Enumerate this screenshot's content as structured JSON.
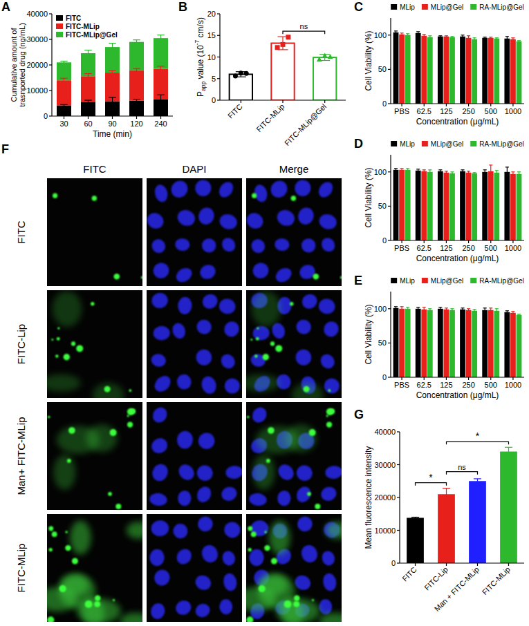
{
  "chart_data": [
    {
      "panel": "A",
      "type": "bar",
      "stacked": true,
      "grid": false,
      "legend": "top-left",
      "y_label": "Cumulative amount of trasnported drug (ng/mL)",
      "x_label": "Time (min)",
      "categories": [
        "30",
        "60",
        "90",
        "120",
        "240"
      ],
      "ylim": [
        0,
        40000
      ],
      "yticks": [
        0,
        10000,
        20000,
        30000,
        40000
      ],
      "series": [
        {
          "name": "FITC",
          "color": "#000000",
          "values": [
            4200,
            5400,
            5800,
            6000,
            6500
          ],
          "errors": [
            300,
            800,
            1500,
            600,
            1800
          ]
        },
        {
          "name": "FITC-MLip",
          "color": "#e8201c",
          "values": [
            9800,
            10200,
            11200,
            11800,
            12000
          ],
          "errors": [
            800,
            1000,
            700,
            800,
            1000
          ]
        },
        {
          "name": "FITC-MLip@Gel",
          "color": "#2eb82e",
          "values": [
            7000,
            9000,
            10000,
            11200,
            12000
          ],
          "errors": [
            500,
            1200,
            1500,
            800,
            1200
          ]
        }
      ]
    },
    {
      "panel": "B",
      "type": "bar",
      "grid": false,
      "y_label": [
        {
          "text": "P"
        },
        {
          "text": "app",
          "sub": true
        },
        {
          "text": " value (10"
        },
        {
          "text": "-7",
          "sup": true
        },
        {
          "text": " cm/s)"
        }
      ],
      "categories": [
        "FITC",
        "FITC-MLip",
        "FITC-MLip@Gel"
      ],
      "colors": [
        "#000000",
        "#e8201c",
        "#2eb82e"
      ],
      "values": [
        6.0,
        13.2,
        9.9
      ],
      "errors": [
        0.6,
        1.5,
        0.7
      ],
      "points": [
        {
          "marker": "circle",
          "values": [
            5.6,
            6.3,
            6.2
          ]
        },
        {
          "marker": "square",
          "values": [
            12.2,
            12.9,
            14.6
          ]
        },
        {
          "marker": "triangle",
          "values": [
            9.4,
            10.3,
            10.0
          ]
        }
      ],
      "ylim": [
        0,
        20
      ],
      "yticks": [
        0,
        5,
        10,
        15,
        20
      ],
      "annotations": [
        {
          "text": "ns",
          "between": [
            "FITC-MLip",
            "FITC-MLip@Gel"
          ]
        }
      ]
    },
    {
      "panel": "C",
      "type": "bar",
      "grid": false,
      "legend": "top",
      "y_label": "Cell Viability (%)",
      "x_label": "Concentration (μg/mL)",
      "categories": [
        "PBS",
        "62.5",
        "125",
        "250",
        "500",
        "1000"
      ],
      "ylim": [
        0,
        125
      ],
      "yticks": [
        0,
        50,
        100
      ],
      "series": [
        {
          "name": "MLip",
          "color": "#000000",
          "values": [
            104,
            103,
            98,
            98,
            96,
            95
          ],
          "errors": [
            2,
            2,
            1,
            2,
            1,
            3
          ]
        },
        {
          "name": "MLip@Gel",
          "color": "#e8201c",
          "values": [
            101,
            99,
            98,
            96,
            96,
            94
          ],
          "errors": [
            2,
            2,
            1,
            3,
            1,
            2
          ]
        },
        {
          "name": "RA-MLip@Gel",
          "color": "#2eb82e",
          "values": [
            100,
            97,
            97,
            94,
            95,
            91
          ],
          "errors": [
            2,
            2,
            1,
            2,
            1,
            1
          ]
        }
      ]
    },
    {
      "panel": "D",
      "type": "bar",
      "grid": false,
      "legend": "top",
      "y_label": "Cell Viability (%)",
      "x_label": "Concentration (μg/mL)",
      "categories": [
        "PBS",
        "62.5",
        "125",
        "250",
        "500",
        "1000"
      ],
      "ylim": [
        0,
        125
      ],
      "yticks": [
        0,
        50,
        100
      ],
      "series": [
        {
          "name": "MLip",
          "color": "#000000",
          "values": [
            103,
            102,
            101,
            101,
            100,
            100
          ],
          "errors": [
            2,
            2,
            2,
            2,
            3,
            7
          ]
        },
        {
          "name": "MLip@Gel",
          "color": "#e8201c",
          "values": [
            103,
            101,
            99,
            99,
            101,
            97
          ],
          "errors": [
            2,
            2,
            2,
            2,
            9,
            3
          ]
        },
        {
          "name": "RA-MLip@Gel",
          "color": "#2eb82e",
          "values": [
            103,
            100,
            98,
            98,
            99,
            97
          ],
          "errors": [
            2,
            3,
            2,
            1,
            3,
            3
          ]
        }
      ]
    },
    {
      "panel": "E",
      "type": "bar",
      "grid": false,
      "legend": "top",
      "y_label": "Cell Viability (%)",
      "x_label": "Concentration (μg/mL)",
      "categories": [
        "PBS",
        "62.5",
        "125",
        "250",
        "500",
        "1000"
      ],
      "ylim": [
        0,
        125
      ],
      "yticks": [
        0,
        50,
        100
      ],
      "series": [
        {
          "name": "MLip",
          "color": "#000000",
          "values": [
            101,
            100,
            100,
            99,
            98,
            95
          ],
          "errors": [
            2,
            2,
            2,
            2,
            3,
            2
          ]
        },
        {
          "name": "MLip@Gel",
          "color": "#e8201c",
          "values": [
            100,
            99,
            99,
            98,
            98,
            94
          ],
          "errors": [
            3,
            3,
            2,
            2,
            3,
            2
          ]
        },
        {
          "name": "RA-MLip@Gel",
          "color": "#2eb82e",
          "values": [
            100,
            98,
            98,
            97,
            97,
            91
          ],
          "errors": [
            2,
            2,
            2,
            2,
            3,
            1
          ]
        }
      ]
    },
    {
      "panel": "G",
      "type": "bar",
      "grid": false,
      "y_label": "Mean fluorescence intensity",
      "categories": [
        "FITC",
        "FITC-Lip",
        "Man + FITC-MLip",
        "FITC-MLip"
      ],
      "colors": [
        "#000000",
        "#e8201c",
        "#1f1fff",
        "#2eb82e"
      ],
      "values": [
        13800,
        21000,
        25000,
        34000
      ],
      "errors": [
        200,
        1800,
        700,
        1300
      ],
      "ylim": [
        0,
        40000
      ],
      "yticks": [
        0,
        10000,
        20000,
        30000,
        40000
      ],
      "annotations": [
        {
          "text": "*",
          "between": [
            "FITC",
            "FITC-Lip"
          ]
        },
        {
          "text": "ns",
          "between": [
            "FITC-Lip",
            "Man + FITC-MLip"
          ]
        },
        {
          "text": "*",
          "between": [
            "FITC-Lip",
            "FITC-MLip"
          ]
        }
      ]
    }
  ],
  "micrographs": {
    "panel": "F",
    "columns": [
      "FITC",
      "DAPI",
      "Merge"
    ],
    "rows": [
      "FITC",
      "FITC-Lip",
      "Man+ FITC-MLip",
      "FITC-MLip"
    ]
  }
}
